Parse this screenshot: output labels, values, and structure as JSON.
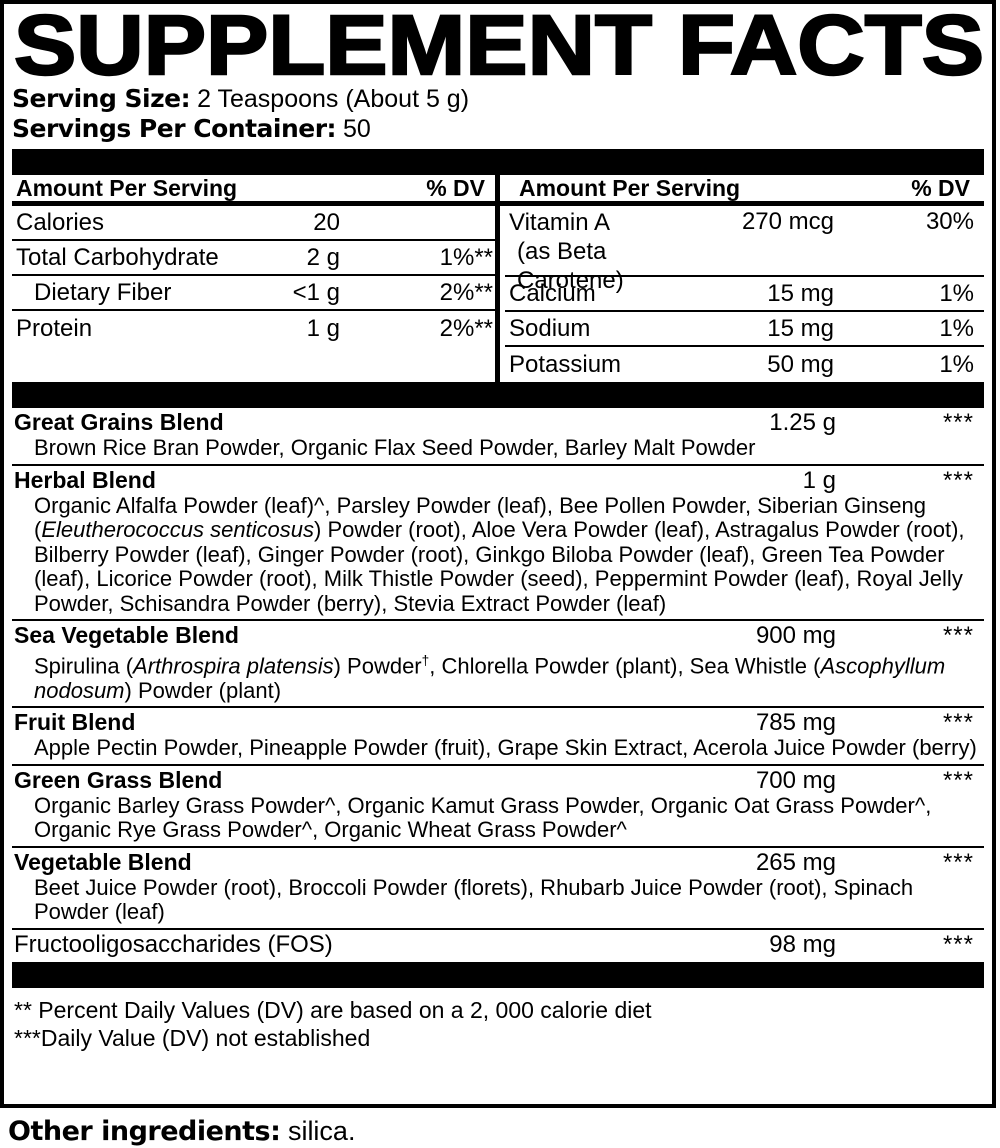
{
  "title": "SUPPLEMENT FACTS",
  "serving": {
    "size_label": "Serving Size:",
    "size_value": " 2 Teaspoons (About 5 g)",
    "per_container_label": "Servings Per Container:",
    "per_container_value": " 50"
  },
  "columns": {
    "left_header_amount": "Amount Per Serving",
    "left_header_dv": "% DV",
    "right_header_amount": "Amount Per Serving",
    "right_header_dv": "% DV",
    "left_rows": [
      {
        "name": "Calories",
        "amount": "20",
        "dv": "",
        "indent": false
      },
      {
        "name": "Total Carbohydrate",
        "amount": "2 g",
        "dv": "1%**",
        "indent": false
      },
      {
        "name": "Dietary Fiber",
        "amount": "<1 g",
        "dv": "2%**",
        "indent": true
      },
      {
        "name": "Protein",
        "amount": "1 g",
        "dv": "2%**",
        "indent": false
      }
    ],
    "right_rows": [
      {
        "name": "Vitamin A",
        "sub": "(as Beta Carotene)",
        "amount": "270 mcg",
        "dv": "30%"
      },
      {
        "name": "Calcium",
        "amount": "15 mg",
        "dv": "1%"
      },
      {
        "name": "Sodium",
        "amount": "15 mg",
        "dv": "1%"
      },
      {
        "name": "Potassium",
        "amount": "50 mg",
        "dv": "1%"
      }
    ]
  },
  "blends": [
    {
      "name": "Great Grains Blend",
      "bold": true,
      "amount": "1.25 g",
      "dv": "***",
      "desc": [
        {
          "t": "Brown Rice Bran Powder, Organic Flax Seed Powder, Barley Malt Powder"
        }
      ]
    },
    {
      "name": "Herbal Blend",
      "bold": true,
      "amount": "1 g",
      "dv": "***",
      "desc": [
        {
          "t": "Organic Alfalfa Powder (leaf)^, Parsley Powder (leaf), Bee Pollen Powder, Siberian Ginseng ("
        },
        {
          "t": "Eleutherococcus senticosus",
          "i": true
        },
        {
          "t": ") Powder (root), Aloe Vera Powder (leaf), Astragalus Powder (root), Bilberry Powder (leaf), Ginger Powder (root), Ginkgo Biloba Powder (leaf), Green Tea Powder (leaf), Licorice Powder (root), Milk Thistle Powder (seed), Peppermint Powder (leaf), Royal Jelly Powder, Schisandra Powder (berry), Stevia Extract Powder (leaf)"
        }
      ]
    },
    {
      "name": "Sea Vegetable Blend",
      "bold": true,
      "amount": "900 mg",
      "dv": "***",
      "desc": [
        {
          "t": "Spirulina ("
        },
        {
          "t": "Arthrospira platensis",
          "i": true
        },
        {
          "t": ") Powder"
        },
        {
          "t": "†",
          "sup": true
        },
        {
          "t": ", Chlorella Powder (plant), Sea Whistle ("
        },
        {
          "t": "Ascophyllum nodosum",
          "i": true
        },
        {
          "t": ") Powder (plant)"
        }
      ]
    },
    {
      "name": "Fruit Blend",
      "bold": true,
      "amount": "785 mg",
      "dv": "***",
      "desc": [
        {
          "t": "Apple Pectin Powder, Pineapple Powder (fruit), Grape Skin Extract, Acerola Juice Powder (berry)"
        }
      ]
    },
    {
      "name": "Green Grass Blend",
      "bold": true,
      "amount": "700 mg",
      "dv": "***",
      "desc": [
        {
          "t": "Organic Barley Grass Powder^, Organic Kamut Grass Powder, Organic Oat Grass Powder^, Organic Rye Grass Powder^, Organic Wheat Grass Powder^"
        }
      ]
    },
    {
      "name": "Vegetable Blend",
      "bold": true,
      "amount": "265 mg",
      "dv": "***",
      "desc": [
        {
          "t": "Beet Juice Powder (root), Broccoli Powder (florets), Rhubarb Juice Powder (root), Spinach Powder (leaf)"
        }
      ]
    },
    {
      "name": "Fructooligosaccharides (FOS)",
      "bold": false,
      "amount": "98 mg",
      "dv": "***",
      "desc": []
    }
  ],
  "footnotes": [
    "** Percent Daily Values (DV) are based on a 2, 000 calorie diet",
    "***Daily Value (DV) not established"
  ],
  "other_ingredients": {
    "label": "Other ingredients:",
    "value": " silica."
  },
  "colors": {
    "ink": "#000000",
    "paper": "#ffffff"
  }
}
